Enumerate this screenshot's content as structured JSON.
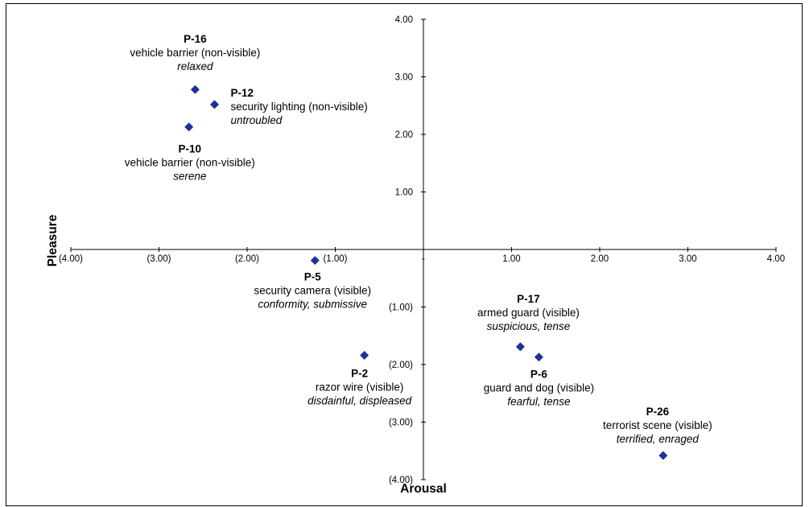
{
  "chart_data": {
    "type": "scatter",
    "title": "",
    "xlabel": "Arousal",
    "ylabel": "Pleasure",
    "xlim": [
      -4,
      4
    ],
    "ylim": [
      -4,
      4
    ],
    "grid": false,
    "legend": "none",
    "marker_color": "#1f2f9c",
    "x_ticks": [
      {
        "value": -4,
        "label": "(4.00)"
      },
      {
        "value": -3,
        "label": "(3.00)"
      },
      {
        "value": -2,
        "label": "(2.00)"
      },
      {
        "value": -1,
        "label": "(1.00)"
      },
      {
        "value": 0,
        "label": "-"
      },
      {
        "value": 1,
        "label": "1.00"
      },
      {
        "value": 2,
        "label": "2.00"
      },
      {
        "value": 3,
        "label": "3.00"
      },
      {
        "value": 4,
        "label": "4.00"
      }
    ],
    "y_ticks": [
      {
        "value": 4,
        "label": "4.00"
      },
      {
        "value": 3,
        "label": "3.00"
      },
      {
        "value": 2,
        "label": "2.00"
      },
      {
        "value": 1,
        "label": "1.00"
      },
      {
        "value": -1,
        "label": "(1.00)"
      },
      {
        "value": -2,
        "label": "(2.00)"
      },
      {
        "value": -3,
        "label": "(3.00)"
      },
      {
        "value": -4,
        "label": "(4.00)"
      }
    ],
    "points": [
      {
        "id": "P-16",
        "x": -2.59,
        "y": 2.78,
        "description": "vehicle barrier (non-visible)",
        "mood": "relaxed"
      },
      {
        "id": "P-12",
        "x": -2.37,
        "y": 2.52,
        "description": "security lighting (non-visible)",
        "mood": "untroubled"
      },
      {
        "id": "P-10",
        "x": -2.66,
        "y": 2.13,
        "description": "vehicle barrier (non-visible)",
        "mood": "serene"
      },
      {
        "id": "P-5",
        "x": -1.23,
        "y": -0.19,
        "description": "security camera (visible)",
        "mood": "conformity, submissive"
      },
      {
        "id": "P-2",
        "x": -0.67,
        "y": -1.84,
        "description": "razor wire (visible)",
        "mood": "disdainful, displeased"
      },
      {
        "id": "P-17",
        "x": 1.1,
        "y": -1.69,
        "description": "armed guard (visible)",
        "mood": "suspicious, tense"
      },
      {
        "id": "P-6",
        "x": 1.31,
        "y": -1.87,
        "description": "guard and dog (visible)",
        "mood": "fearful, tense"
      },
      {
        "id": "P-26",
        "x": 2.72,
        "y": -3.58,
        "description": "terrorist scene (visible)",
        "mood": "terrified, enraged"
      }
    ]
  }
}
